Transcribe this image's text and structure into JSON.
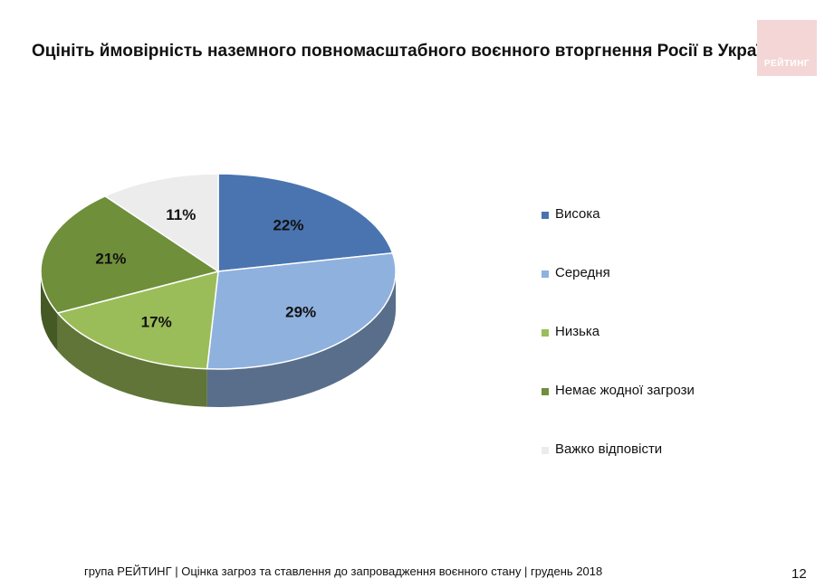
{
  "header": {
    "title": "Оцініть ймовірність наземного повномасштабного воєнного вторгнення Росії в Україну?",
    "logo_text": "РЕЙТИНГ"
  },
  "chart_data": {
    "type": "pie",
    "title": "Оцініть ймовірність наземного повномасштабного воєнного вторгнення Росії в Україну?",
    "style": "3d",
    "legend_position": "right",
    "slices": [
      {
        "label": "Висока",
        "value": 22,
        "display": "22%",
        "color": "#4a74b0"
      },
      {
        "label": "Середня",
        "value": 29,
        "display": "29%",
        "color": "#8fb1de"
      },
      {
        "label": "Низька",
        "value": 17,
        "display": "17%",
        "color": "#9bbd59"
      },
      {
        "label": "Немає жодної загрози",
        "value": 21,
        "display": "21%",
        "color": "#6f8f3a"
      },
      {
        "label": "Важко відповісти",
        "value": 11,
        "display": "11%",
        "color": "#ececec"
      }
    ]
  },
  "footer": {
    "text": "група РЕЙТИНГ | Оцінка загроз та ставлення до запровадження воєнного стану | грудень 2018",
    "page_number": "12"
  }
}
